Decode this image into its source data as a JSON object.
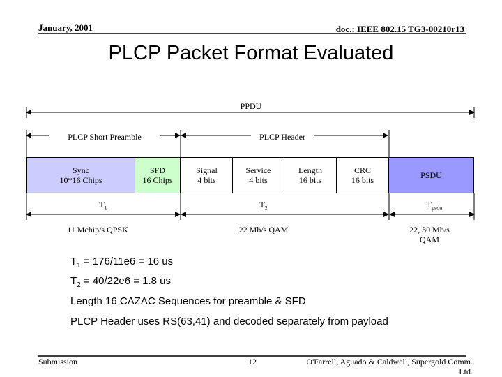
{
  "header": {
    "date": "January, 2001",
    "doc": "doc.: IEEE 802.15  TG3-00210r13"
  },
  "title": "PLCP Packet Format Evaluated",
  "diagram": {
    "ppdu_label": "PPDU",
    "short_preamble_label": "PLCP Short Preamble",
    "plcp_header_label": "PLCP Header",
    "fields": [
      {
        "line1": "Sync",
        "line2": "10*16 Chips"
      },
      {
        "line1": "SFD",
        "line2": "16 Chips"
      },
      {
        "line1": "Signal",
        "line2": "4 bits"
      },
      {
        "line1": "Service",
        "line2": "4 bits"
      },
      {
        "line1": "Length",
        "line2": "16 bits"
      },
      {
        "line1": "CRC",
        "line2": "16 bits"
      },
      {
        "line1": "PSDU",
        "line2": ""
      }
    ],
    "t1": {
      "base": "T",
      "sub": "1"
    },
    "t2": {
      "base": "T",
      "sub": "2"
    },
    "tpsdu": {
      "base": "T",
      "sub": "psdu"
    },
    "rate_preamble": "11 Mchip/s QPSK",
    "rate_header": "22 Mb/s QAM",
    "rate_psdu_line1": "22, 30 Mb/s",
    "rate_psdu_line2": "QAM",
    "colors": {
      "preamble": "#ccccff",
      "sfd": "#ccffcc",
      "psdu": "#9999ff"
    }
  },
  "body": {
    "line1": {
      "base": "T",
      "sub": "1",
      "rest": " = 176/11e6 = 16 us"
    },
    "line2": {
      "base": "T",
      "sub": "2",
      "rest": " = 40/22e6  = 1.8 us"
    },
    "line3": "Length 16 CAZAC Sequences for preamble & SFD",
    "line4": "PLCP Header uses RS(63,41) and decoded separately from payload"
  },
  "footer": {
    "left": "Submission",
    "page": "12",
    "authors_line1": "O'Farrell, Aguado & Caldwell, Supergold Comm.",
    "authors_line2": "Ltd."
  }
}
